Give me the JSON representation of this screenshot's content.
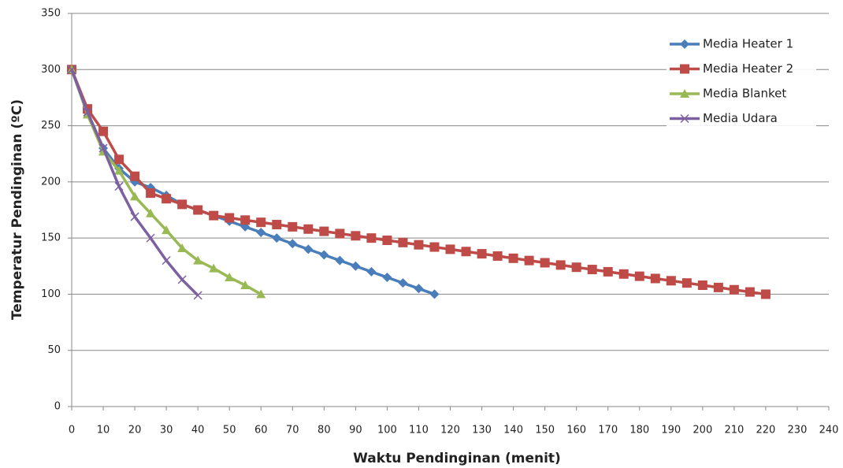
{
  "chart_data": {
    "type": "line",
    "x_label": "Waktu Pendinginan (menit)",
    "y_label": "Temperatur Pendinginan (ºC)",
    "xlim": [
      0,
      240
    ],
    "ylim": [
      0,
      350
    ],
    "xticks": [
      0,
      10,
      20,
      30,
      40,
      50,
      60,
      70,
      80,
      90,
      100,
      110,
      120,
      130,
      140,
      150,
      160,
      170,
      180,
      190,
      200,
      210,
      220,
      230,
      240
    ],
    "yticks": [
      0,
      50,
      100,
      150,
      200,
      250,
      300,
      350
    ],
    "grid": true,
    "legend": "upper right",
    "series": [
      {
        "name": "Media Heater 1",
        "color": "#4a7ebb",
        "marker": "diamond",
        "x": [
          0,
          5,
          10,
          15,
          20,
          25,
          30,
          35,
          40,
          45,
          50,
          55,
          60,
          65,
          70,
          75,
          80,
          85,
          90,
          95,
          100,
          105,
          110,
          115
        ],
        "values": [
          300,
          262,
          230,
          212,
          200,
          195,
          188,
          180,
          175,
          170,
          165,
          160,
          155,
          150,
          145,
          140,
          135,
          130,
          125,
          120,
          115,
          110,
          105,
          100
        ]
      },
      {
        "name": "Media Heater 2",
        "color": "#be4b48",
        "marker": "square",
        "x": [
          0,
          5,
          10,
          15,
          20,
          25,
          30,
          35,
          40,
          45,
          50,
          55,
          60,
          65,
          70,
          75,
          80,
          85,
          90,
          95,
          100,
          105,
          110,
          115,
          120,
          125,
          130,
          135,
          140,
          145,
          150,
          155,
          160,
          165,
          170,
          175,
          180,
          185,
          190,
          195,
          200,
          205,
          210,
          215,
          220
        ],
        "values": [
          300,
          265,
          245,
          220,
          205,
          190,
          185,
          180,
          175,
          170,
          168,
          166,
          164,
          162,
          160,
          158,
          156,
          154,
          152,
          150,
          148,
          146,
          144,
          142,
          140,
          138,
          136,
          134,
          132,
          130,
          128,
          126,
          124,
          122,
          120,
          118,
          116,
          114,
          112,
          110,
          108,
          106,
          104,
          102,
          100
        ]
      },
      {
        "name": "Media Blanket",
        "color": "#98b954",
        "marker": "triangle",
        "x": [
          0,
          5,
          10,
          15,
          20,
          25,
          30,
          35,
          40,
          45,
          50,
          55,
          60
        ],
        "values": [
          300,
          260,
          227,
          210,
          187,
          172,
          157,
          141,
          130,
          123,
          115,
          108,
          100
        ]
      },
      {
        "name": "Media Udara",
        "color": "#7d60a0",
        "marker": "x",
        "x": [
          0,
          5,
          10,
          15,
          20,
          25,
          30,
          35,
          40
        ],
        "values": [
          300,
          262,
          230,
          196,
          169,
          150,
          130,
          113,
          99
        ]
      }
    ]
  }
}
